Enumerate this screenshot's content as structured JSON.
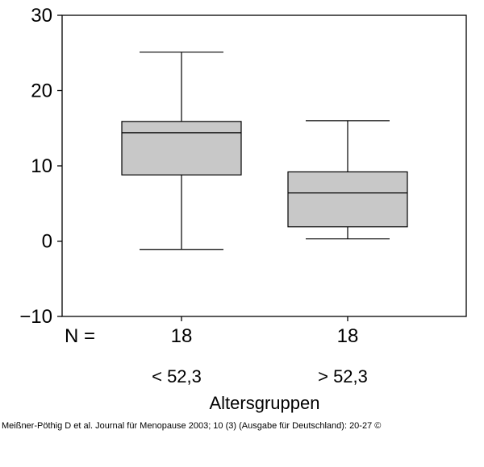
{
  "chart_data": {
    "type": "boxplot",
    "xlabel": "Altersgruppen",
    "ylabel": "",
    "ylim": [
      -10,
      30
    ],
    "yticks": [
      30,
      20,
      10,
      0,
      -10
    ],
    "ytick_labels": [
      "30",
      "20",
      "10",
      "0",
      "−10"
    ],
    "n_label": "N =",
    "grid": false,
    "box_color": "#c8c8c8",
    "categories": [
      "< 52,3",
      "> 52,3"
    ],
    "n_values": [
      "18",
      "18"
    ],
    "boxes": [
      {
        "category": "< 52,3",
        "n": "18",
        "whisker_low": -1.1,
        "q1": 8.8,
        "median": 14.4,
        "q3": 15.9,
        "whisker_high": 25.1
      },
      {
        "category": "> 52,3",
        "n": "18",
        "whisker_low": 0.3,
        "q1": 1.9,
        "median": 6.4,
        "q3": 9.2,
        "whisker_high": 16.0
      }
    ]
  },
  "footer": {
    "citation": "Meißner-Pöthig D et al. Journal für Menopause 2003; 10 (3) (Ausgabe für Deutschland): 20-27 ©"
  }
}
